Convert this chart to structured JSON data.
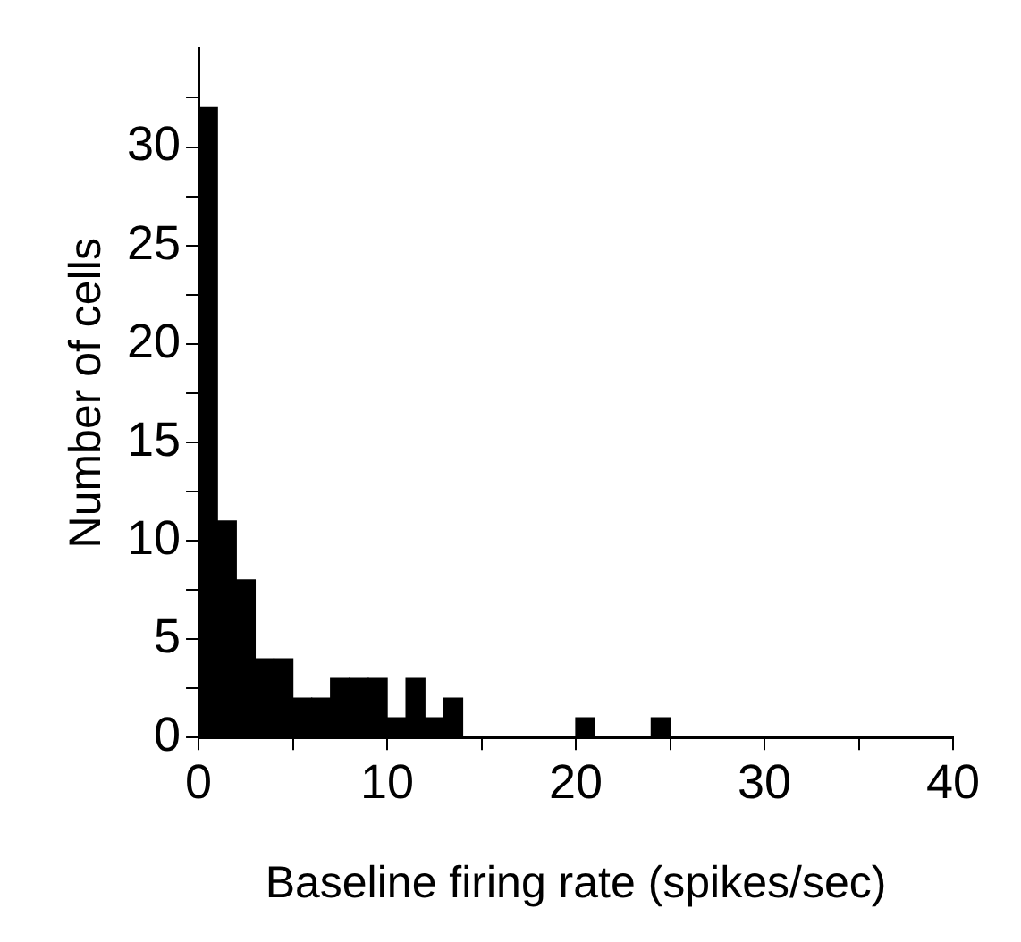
{
  "chart_data": {
    "type": "histogram",
    "xlabel": "Baseline firing rate (spikes/sec)",
    "ylabel": "Number of cells",
    "bins": [
      0,
      1,
      2,
      3,
      4,
      5,
      6,
      7,
      8,
      9,
      10,
      11,
      12,
      13,
      14,
      15,
      16,
      17,
      18,
      19,
      20,
      21,
      22,
      23,
      24,
      25
    ],
    "values": [
      32,
      11,
      8,
      4,
      4,
      2,
      2,
      3,
      3,
      3,
      1,
      3,
      1,
      2,
      0,
      0,
      0,
      0,
      0,
      0,
      1,
      0,
      0,
      0,
      1
    ],
    "color": "#000000",
    "xlim": [
      0,
      40
    ],
    "ylim": [
      0,
      35
    ],
    "xticks": [
      0,
      {
        "value": 5,
        "label": null
      },
      10,
      {
        "value": 15,
        "label": null
      },
      20,
      {
        "value": 25,
        "label": null
      },
      30,
      {
        "value": 35,
        "label": null
      },
      40
    ],
    "yticks": [
      0,
      {
        "value": 2.5,
        "label": null
      },
      5,
      {
        "value": 7.5,
        "label": null
      },
      10,
      {
        "value": 12.5,
        "label": null
      },
      15,
      {
        "value": 17.5,
        "label": null
      },
      20,
      {
        "value": 22.5,
        "label": null
      },
      25,
      {
        "value": 27.5,
        "label": null
      },
      30,
      {
        "value": 32.5,
        "label": null
      }
    ],
    "grid": false
  }
}
